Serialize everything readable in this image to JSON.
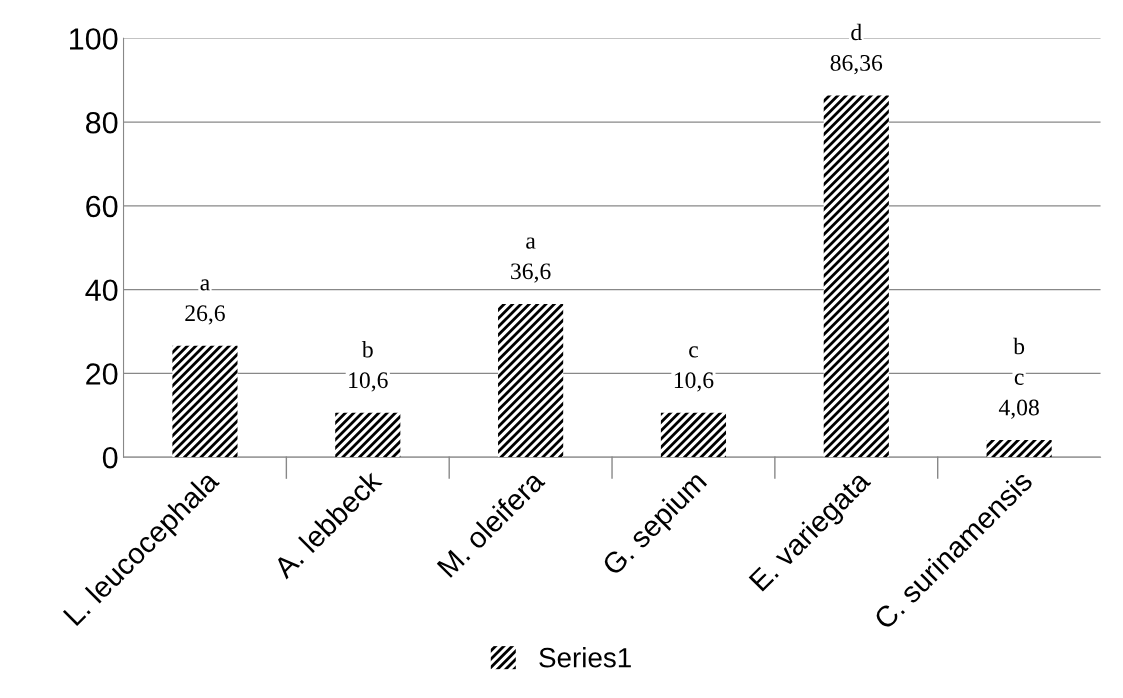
{
  "chart_data": {
    "type": "bar",
    "categories": [
      "L. leucocephala",
      "A. lebbeck",
      "M. oleifera",
      "G. sepium",
      "E. variegata",
      "C. surinamensis"
    ],
    "series": [
      {
        "name": "Series1",
        "color": "#000000",
        "values": [
          26.6,
          10.6,
          36.6,
          10.6,
          86.36,
          4.08
        ],
        "value_labels": [
          "26,6",
          "10,6",
          "36,6",
          "10,6",
          "86,36",
          "4,08"
        ]
      }
    ],
    "ylim": [
      0,
      100
    ],
    "yticks": [
      0,
      20,
      40,
      60,
      80,
      100
    ],
    "grid": "y",
    "legend": "bottom",
    "annotations": [
      "a",
      "b",
      "a",
      "c",
      "d",
      "b",
      "c"
    ]
  }
}
